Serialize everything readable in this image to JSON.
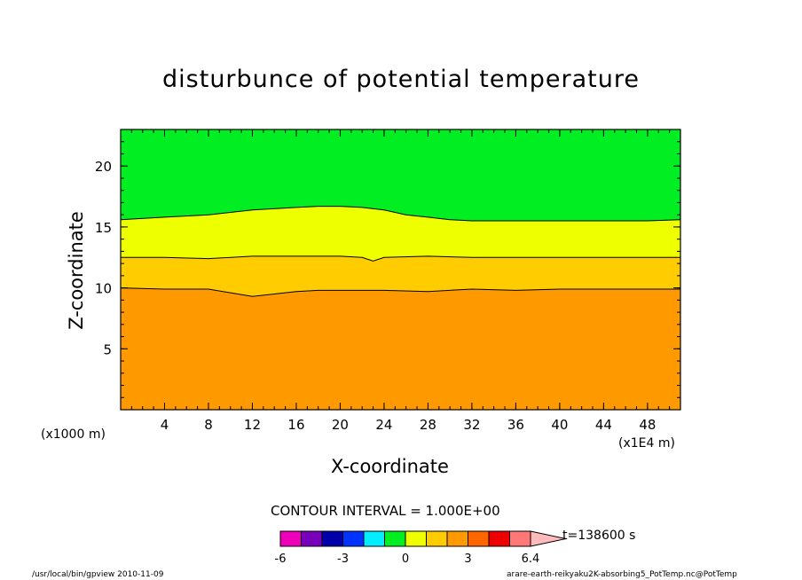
{
  "chart_data": {
    "type": "contour",
    "title": "disturbunce of potential temperature",
    "xlabel": "X-coordinate",
    "ylabel": "Z-coordinate",
    "x_scale_note_left": "(x1000 m)",
    "x_scale_note_right": "(x1E4 m)",
    "xlim": [
      0,
      51
    ],
    "ylim": [
      0,
      23
    ],
    "x_ticks": [
      4,
      8,
      12,
      16,
      20,
      24,
      28,
      32,
      36,
      40,
      44,
      48
    ],
    "y_ticks": [
      5,
      10,
      15,
      20
    ],
    "contour_interval_text": "CONTOUR INTERVAL = 1.000E+00",
    "time_text": "t=138600 s",
    "contour_lines": [
      {
        "level": "10",
        "x": [
          0,
          4,
          8,
          10,
          12,
          14,
          16,
          18,
          20,
          24,
          28,
          32,
          36,
          40,
          44,
          48,
          51
        ],
        "y": [
          10.0,
          9.9,
          9.9,
          9.6,
          9.3,
          9.5,
          9.7,
          9.8,
          9.8,
          9.8,
          9.7,
          9.9,
          9.8,
          9.9,
          9.9,
          9.9,
          9.9
        ]
      },
      {
        "level": "12.5",
        "x": [
          0,
          4,
          8,
          12,
          16,
          20,
          22,
          23,
          24,
          28,
          32,
          36,
          40,
          44,
          48,
          51
        ],
        "y": [
          12.5,
          12.5,
          12.4,
          12.6,
          12.6,
          12.6,
          12.5,
          12.2,
          12.5,
          12.6,
          12.5,
          12.5,
          12.5,
          12.5,
          12.5,
          12.5
        ]
      },
      {
        "level": "15.5",
        "x": [
          0,
          4,
          8,
          12,
          16,
          18,
          20,
          22,
          24,
          26,
          28,
          30,
          32,
          36,
          40,
          44,
          48,
          51
        ],
        "y": [
          15.6,
          15.8,
          16.0,
          16.4,
          16.6,
          16.7,
          16.7,
          16.6,
          16.4,
          16.0,
          15.8,
          15.6,
          15.5,
          15.5,
          15.5,
          15.5,
          15.5,
          15.6
        ]
      }
    ],
    "regions": [
      {
        "bottom": "floor",
        "top": "line0",
        "color": "#ff9900"
      },
      {
        "bottom": "line0",
        "top": "line1",
        "color": "#ffcc00"
      },
      {
        "bottom": "line1",
        "top": "line2",
        "color": "#eeff00"
      },
      {
        "bottom": "line2",
        "top": "ceiling",
        "color": "#00ee22"
      }
    ],
    "colorbar": {
      "colors": [
        "#ee00bb",
        "#7700bb",
        "#0000aa",
        "#0033ff",
        "#00eeff",
        "#00ee22",
        "#eeff00",
        "#ffcc00",
        "#ff9900",
        "#ff6600",
        "#ee0000",
        "#ff7777"
      ],
      "arrow_color": "#ffbbbb",
      "labels": [
        {
          "text": "-6",
          "index": 0
        },
        {
          "text": "-3",
          "index": 3
        },
        {
          "text": "0",
          "index": 6
        },
        {
          "text": "3",
          "index": 9
        },
        {
          "text": "6.4",
          "index": 12
        }
      ]
    }
  },
  "footer": {
    "left": "/usr/local/bin/gpview  2010-11-09",
    "right": "arare-earth-reikyaku2K-absorbing5_PotTemp.nc@PotTemp"
  }
}
